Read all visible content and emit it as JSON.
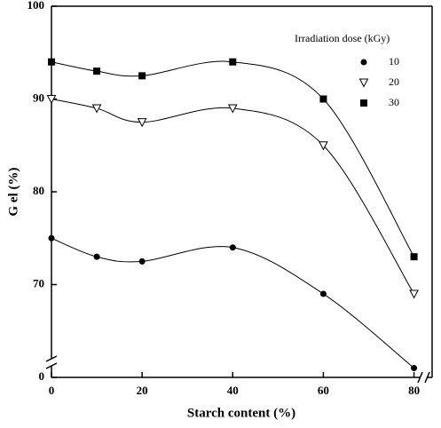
{
  "chart_data": {
    "type": "line",
    "x_label": "Starch content  (%)",
    "y_label": "G el  (%)",
    "legend_title": "Irradiation dose (kGy)",
    "x": [
      0,
      10,
      20,
      40,
      60,
      80
    ],
    "series": [
      {
        "name": "10",
        "color": "#000000",
        "marker": "circle",
        "values": [
          75,
          73,
          72.5,
          74,
          69,
          61
        ]
      },
      {
        "name": "20",
        "color": "#000000",
        "marker": "triangle",
        "values": [
          90,
          89,
          87.5,
          89,
          85,
          69
        ]
      },
      {
        "name": "30",
        "color": "#000000",
        "marker": "square",
        "values": [
          94,
          93,
          92.5,
          94,
          90,
          73
        ]
      }
    ],
    "xlim": [
      0,
      84
    ],
    "xticks": [
      0,
      20,
      40,
      60,
      80
    ],
    "ylim": [
      0,
      100
    ],
    "ybreak": [
      0,
      60
    ],
    "yticks": [
      0,
      70,
      80,
      90,
      100
    ],
    "smooth": true,
    "grid": false,
    "legend": "upper right"
  }
}
